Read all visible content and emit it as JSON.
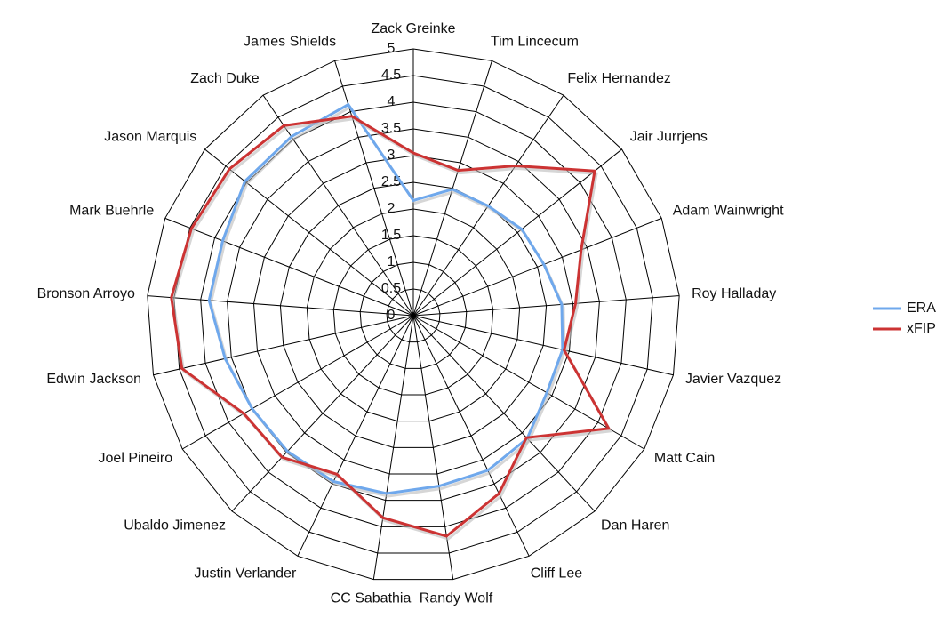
{
  "chart_data": {
    "type": "radar",
    "categories": [
      "Zack Greinke",
      "Tim Lincecum",
      "Felix Hernandez",
      "Jair Jurrjens",
      "Adam Wainwright",
      "Roy Halladay",
      "Javier Vazquez",
      "Matt Cain",
      "Dan Haren",
      "Cliff Lee",
      "Randy Wolf",
      "CC Sabathia",
      "Justin Verlander",
      "Ubaldo Jimenez",
      "Joel Pineiro",
      "Edwin Jackson",
      "Bronson Arroyo",
      "Mark Buehrle",
      "Jason Marquis",
      "Zach Duke",
      "James Shields"
    ],
    "series": [
      {
        "name": "ERA",
        "color": "#6fa8ec",
        "values": [
          2.16,
          2.48,
          2.49,
          2.6,
          2.63,
          2.79,
          2.87,
          2.89,
          3.14,
          3.22,
          3.23,
          3.37,
          3.45,
          3.47,
          3.49,
          3.62,
          3.84,
          3.84,
          4.04,
          4.06,
          4.14
        ]
      },
      {
        "name": "xFIP",
        "color": "#cc3333",
        "values": [
          3.05,
          2.85,
          3.4,
          4.35,
          3.38,
          3.05,
          2.9,
          4.23,
          3.12,
          3.7,
          4.18,
          3.83,
          3.3,
          3.62,
          3.67,
          4.45,
          4.55,
          4.47,
          4.41,
          4.31,
          3.91
        ]
      }
    ],
    "ylim": [
      0,
      5
    ],
    "yticks": [
      0,
      0.5,
      1,
      1.5,
      2,
      2.5,
      3,
      3.5,
      4,
      4.5,
      5
    ],
    "grid": true,
    "legend": "right"
  }
}
